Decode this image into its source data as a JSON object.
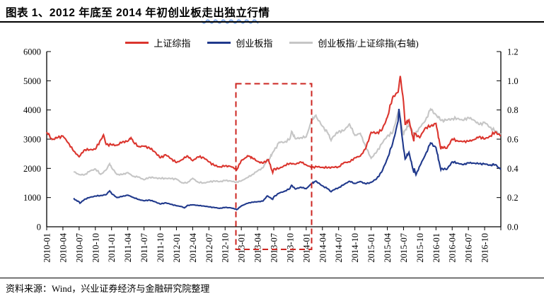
{
  "header": {
    "title_pre": "图表 1、2012 年底至 2014 年初创业板",
    "title_wavy": "走出独立行",
    "title_post": "情"
  },
  "footer": {
    "source": "资料来源：Wind，兴业证券经济与金融研究院整理"
  },
  "colors": {
    "sse": "#DB352E",
    "chinext": "#20398C",
    "ratio": "#C6C6C6",
    "highlight": "#CC2520",
    "axis": "#000000"
  },
  "chart_data": {
    "type": "line",
    "x_axis": {
      "unit": "month",
      "range_months": [
        0,
        84
      ],
      "start": "2010-01",
      "end": "2016-12",
      "tick_step_months": 3,
      "tick_labels": [
        "2010-01",
        "2010-04",
        "2010-07",
        "2010-10",
        "2011-01",
        "2011-04",
        "2011-07",
        "2011-10",
        "2012-01",
        "2012-04",
        "2012-07",
        "2012-10",
        "2013-01",
        "2013-04",
        "2013-07",
        "2013-10",
        "2014-01",
        "2014-04",
        "2014-07",
        "2014-10",
        "2015-01",
        "2015-04",
        "2015-07",
        "2015-10",
        "2016-01",
        "2016-04",
        "2016-07",
        "2016-10"
      ]
    },
    "left_axis": {
      "min": 0,
      "max": 6000,
      "ticks": [
        "0",
        "1000",
        "2000",
        "3000",
        "4000",
        "5000",
        "6000"
      ]
    },
    "right_axis": {
      "min": 0,
      "max": 1.2,
      "ticks": [
        "0.0",
        "0.2",
        "0.4",
        "0.6",
        "0.8",
        "1.0",
        "1.2"
      ]
    },
    "grid": false,
    "legend_position": "top",
    "series": [
      {
        "name": "上证综指",
        "axis": "left",
        "color_key": "sse",
        "points": [
          [
            0,
            3244
          ],
          [
            1,
            2989
          ],
          [
            2,
            3052
          ],
          [
            3,
            3109
          ],
          [
            4,
            2871
          ],
          [
            5,
            2592
          ],
          [
            6,
            2398
          ],
          [
            7,
            2638
          ],
          [
            8,
            2639
          ],
          [
            9,
            2656
          ],
          [
            10,
            2979
          ],
          [
            10.5,
            3150
          ],
          [
            11,
            2820
          ],
          [
            12,
            2808
          ],
          [
            13,
            2790
          ],
          [
            14,
            2905
          ],
          [
            15,
            2928
          ],
          [
            15.6,
            3050
          ],
          [
            16,
            2911
          ],
          [
            17,
            2743
          ],
          [
            18,
            2762
          ],
          [
            19,
            2701
          ],
          [
            20,
            2567
          ],
          [
            21,
            2359
          ],
          [
            22,
            2468
          ],
          [
            23,
            2333
          ],
          [
            24,
            2199
          ],
          [
            25,
            2293
          ],
          [
            26,
            2428
          ],
          [
            27,
            2263
          ],
          [
            28,
            2396
          ],
          [
            29,
            2372
          ],
          [
            30,
            2225
          ],
          [
            31,
            2103
          ],
          [
            32,
            2047
          ],
          [
            33,
            2086
          ],
          [
            34,
            2068
          ],
          [
            35,
            1980
          ],
          [
            35.15,
            1949
          ],
          [
            36,
            2269
          ],
          [
            37,
            2385
          ],
          [
            37.2,
            2434
          ],
          [
            38,
            2365
          ],
          [
            39,
            2237
          ],
          [
            40,
            2178
          ],
          [
            41,
            2301
          ],
          [
            41.8,
            1850
          ],
          [
            42,
            1979
          ],
          [
            43,
            1994
          ],
          [
            44,
            2098
          ],
          [
            45,
            2175
          ],
          [
            46,
            2141
          ],
          [
            47,
            2221
          ],
          [
            48,
            2116
          ],
          [
            49,
            2033
          ],
          [
            50,
            2056
          ],
          [
            51,
            2033
          ],
          [
            52,
            2026
          ],
          [
            53,
            2039
          ],
          [
            54,
            2048
          ],
          [
            55,
            2201
          ],
          [
            56,
            2217
          ],
          [
            57,
            2364
          ],
          [
            58,
            2420
          ],
          [
            59,
            2683
          ],
          [
            60,
            3235
          ],
          [
            61,
            3210
          ],
          [
            62,
            3310
          ],
          [
            63,
            3748
          ],
          [
            64,
            4442
          ],
          [
            65,
            4612
          ],
          [
            65.4,
            5166
          ],
          [
            66,
            4277
          ],
          [
            66.3,
            3507
          ],
          [
            67,
            3664
          ],
          [
            67.9,
            2927
          ],
          [
            68,
            3206
          ],
          [
            69,
            3053
          ],
          [
            70,
            3383
          ],
          [
            71,
            3445
          ],
          [
            72,
            3539
          ],
          [
            72.9,
            2655
          ],
          [
            73,
            2738
          ],
          [
            74,
            2688
          ],
          [
            75,
            3004
          ],
          [
            76,
            2938
          ],
          [
            77,
            2917
          ],
          [
            78,
            2930
          ],
          [
            79,
            2979
          ],
          [
            80,
            3085
          ],
          [
            81,
            3005
          ],
          [
            82,
            3100
          ],
          [
            83,
            3250
          ],
          [
            84,
            3104
          ]
        ]
      },
      {
        "name": "创业板指",
        "axis": "left",
        "color_key": "chinext",
        "points": [
          [
            5,
            980
          ],
          [
            5.3,
            920
          ],
          [
            6,
            855
          ],
          [
            6.15,
            805
          ],
          [
            7,
            940
          ],
          [
            8,
            1008
          ],
          [
            9,
            1051
          ],
          [
            10,
            1069
          ],
          [
            11,
            1100
          ],
          [
            11.65,
            1230
          ],
          [
            12,
            1137
          ],
          [
            13,
            1000
          ],
          [
            14,
            1040
          ],
          [
            15,
            1085
          ],
          [
            16,
            1005
          ],
          [
            17,
            935
          ],
          [
            18,
            890
          ],
          [
            19,
            915
          ],
          [
            20,
            860
          ],
          [
            21,
            780
          ],
          [
            22,
            820
          ],
          [
            23,
            770
          ],
          [
            24,
            720
          ],
          [
            25,
            690
          ],
          [
            25.5,
            645
          ],
          [
            26,
            730
          ],
          [
            27,
            752
          ],
          [
            28,
            730
          ],
          [
            29,
            712
          ],
          [
            30,
            682
          ],
          [
            31,
            660
          ],
          [
            32,
            632
          ],
          [
            33,
            662
          ],
          [
            34,
            650
          ],
          [
            35,
            604
          ],
          [
            35.15,
            585
          ],
          [
            36,
            713
          ],
          [
            37,
            798
          ],
          [
            38,
            842
          ],
          [
            39,
            856
          ],
          [
            40,
            880
          ],
          [
            40.8,
            1058
          ],
          [
            41,
            1035
          ],
          [
            41.8,
            942
          ],
          [
            42,
            1025
          ],
          [
            43,
            1155
          ],
          [
            44,
            1215
          ],
          [
            45,
            1310
          ],
          [
            45.3,
            1423
          ],
          [
            46,
            1292
          ],
          [
            47,
            1355
          ],
          [
            48,
            1304
          ],
          [
            49,
            1480
          ],
          [
            49.8,
            1566
          ],
          [
            50,
            1530
          ],
          [
            51,
            1400
          ],
          [
            52,
            1300
          ],
          [
            52.6,
            1200
          ],
          [
            53,
            1260
          ],
          [
            54,
            1336
          ],
          [
            55,
            1450
          ],
          [
            56,
            1560
          ],
          [
            57,
            1480
          ],
          [
            58,
            1550
          ],
          [
            59,
            1471
          ],
          [
            60,
            1520
          ],
          [
            61,
            1640
          ],
          [
            62,
            1890
          ],
          [
            63,
            2330
          ],
          [
            64,
            2860
          ],
          [
            65,
            3620
          ],
          [
            65.15,
            4038
          ],
          [
            66,
            2683
          ],
          [
            66.3,
            2320
          ],
          [
            67,
            2550
          ],
          [
            67.9,
            1850
          ],
          [
            68,
            2000
          ],
          [
            68.3,
            1779
          ],
          [
            69,
            2080
          ],
          [
            70,
            2450
          ],
          [
            71,
            2870
          ],
          [
            72,
            2714
          ],
          [
            72.9,
            1950
          ],
          [
            73,
            1994
          ],
          [
            74,
            1964
          ],
          [
            75,
            2224
          ],
          [
            76,
            2181
          ],
          [
            77,
            2125
          ],
          [
            78,
            2191
          ],
          [
            79,
            2178
          ],
          [
            80,
            2160
          ],
          [
            81,
            2150
          ],
          [
            82,
            2110
          ],
          [
            83,
            2130
          ],
          [
            84,
            1962
          ]
        ]
      },
      {
        "name": "创业板指/上证综指(右轴)",
        "axis": "right",
        "color_key": "ratio",
        "points": [
          [
            5,
            0.378
          ],
          [
            6,
            0.357
          ],
          [
            7,
            0.356
          ],
          [
            8,
            0.382
          ],
          [
            9,
            0.396
          ],
          [
            10,
            0.359
          ],
          [
            11,
            0.39
          ],
          [
            11.65,
            0.432
          ],
          [
            12,
            0.405
          ],
          [
            13,
            0.358
          ],
          [
            14,
            0.358
          ],
          [
            15,
            0.371
          ],
          [
            16,
            0.345
          ],
          [
            17,
            0.341
          ],
          [
            18,
            0.322
          ],
          [
            19,
            0.339
          ],
          [
            20,
            0.335
          ],
          [
            21,
            0.331
          ],
          [
            22,
            0.332
          ],
          [
            23,
            0.33
          ],
          [
            24,
            0.327
          ],
          [
            25,
            0.301
          ],
          [
            26,
            0.301
          ],
          [
            27,
            0.332
          ],
          [
            28,
            0.305
          ],
          [
            29,
            0.3
          ],
          [
            30,
            0.307
          ],
          [
            31,
            0.314
          ],
          [
            32,
            0.309
          ],
          [
            33,
            0.317
          ],
          [
            34,
            0.314
          ],
          [
            35,
            0.305
          ],
          [
            36,
            0.314
          ],
          [
            37,
            0.335
          ],
          [
            38,
            0.356
          ],
          [
            39,
            0.383
          ],
          [
            40,
            0.404
          ],
          [
            40.8,
            0.46
          ],
          [
            41,
            0.45
          ],
          [
            41.8,
            0.509
          ],
          [
            42,
            0.518
          ],
          [
            43,
            0.579
          ],
          [
            44,
            0.579
          ],
          [
            45,
            0.602
          ],
          [
            45.3,
            0.653
          ],
          [
            46,
            0.603
          ],
          [
            47,
            0.61
          ],
          [
            48,
            0.616
          ],
          [
            49,
            0.728
          ],
          [
            49.8,
            0.764
          ],
          [
            50,
            0.744
          ],
          [
            51,
            0.689
          ],
          [
            52,
            0.642
          ],
          [
            52.6,
            0.591
          ],
          [
            53,
            0.618
          ],
          [
            54,
            0.652
          ],
          [
            55,
            0.659
          ],
          [
            56,
            0.704
          ],
          [
            57,
            0.626
          ],
          [
            58,
            0.64
          ],
          [
            59,
            0.548
          ],
          [
            60,
            0.47
          ],
          [
            61,
            0.511
          ],
          [
            62,
            0.571
          ],
          [
            63,
            0.622
          ],
          [
            64,
            0.644
          ],
          [
            65,
            0.785
          ],
          [
            65.15,
            0.792
          ],
          [
            66,
            0.627
          ],
          [
            66.3,
            0.662
          ],
          [
            67,
            0.696
          ],
          [
            67.9,
            0.632
          ],
          [
            68,
            0.624
          ],
          [
            69,
            0.681
          ],
          [
            70,
            0.724
          ],
          [
            71,
            0.806
          ],
          [
            72,
            0.767
          ],
          [
            73,
            0.728
          ],
          [
            74,
            0.731
          ],
          [
            75,
            0.74
          ],
          [
            76,
            0.742
          ],
          [
            77,
            0.729
          ],
          [
            78,
            0.748
          ],
          [
            79,
            0.731
          ],
          [
            80,
            0.7
          ],
          [
            81,
            0.715
          ],
          [
            82,
            0.681
          ],
          [
            83,
            0.655
          ],
          [
            84,
            0.632
          ]
        ]
      }
    ],
    "highlight_box": {
      "start_month": "2012-12",
      "end_month": "2014-02",
      "top_value_right_axis": 0.98,
      "extends_below_axis": true
    }
  }
}
